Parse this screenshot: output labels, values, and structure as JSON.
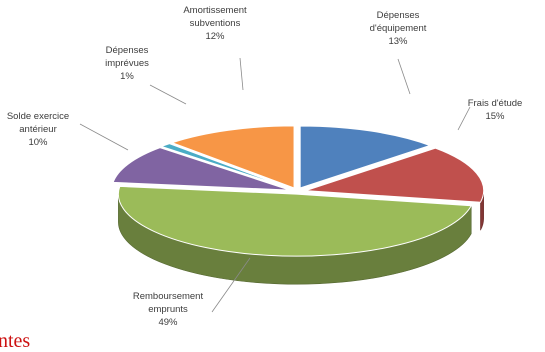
{
  "chart_data": {
    "type": "pie",
    "style": "3d-exploded",
    "slices": [
      {
        "name": "Dépenses d'équipement",
        "label_lines": [
          "Dépenses",
          "d'équipement"
        ],
        "pct_label": "13%",
        "value": 13,
        "color": "#4f81bd"
      },
      {
        "name": "Frais d'étude",
        "label_lines": [
          "Frais d'étude"
        ],
        "pct_label": "15%",
        "value": 15,
        "color": "#c0504d"
      },
      {
        "name": "Remboursement emprunts",
        "label_lines": [
          "Remboursement",
          "emprunts"
        ],
        "pct_label": "49%",
        "value": 49,
        "color": "#9bbb59"
      },
      {
        "name": "Solde exercice antérieur",
        "label_lines": [
          "Solde exercice",
          "antérieur"
        ],
        "pct_label": "10%",
        "value": 10,
        "color": "#8064a2"
      },
      {
        "name": "Dépenses imprévues",
        "label_lines": [
          "Dépenses",
          "imprévues"
        ],
        "pct_label": "1%",
        "value": 1,
        "color": "#4bacc6"
      },
      {
        "name": "Amortissement subventions",
        "label_lines": [
          "Amortissement",
          "subventions"
        ],
        "pct_label": "12%",
        "value": 12,
        "color": "#f79646"
      }
    ]
  },
  "footer_text": "ntes"
}
